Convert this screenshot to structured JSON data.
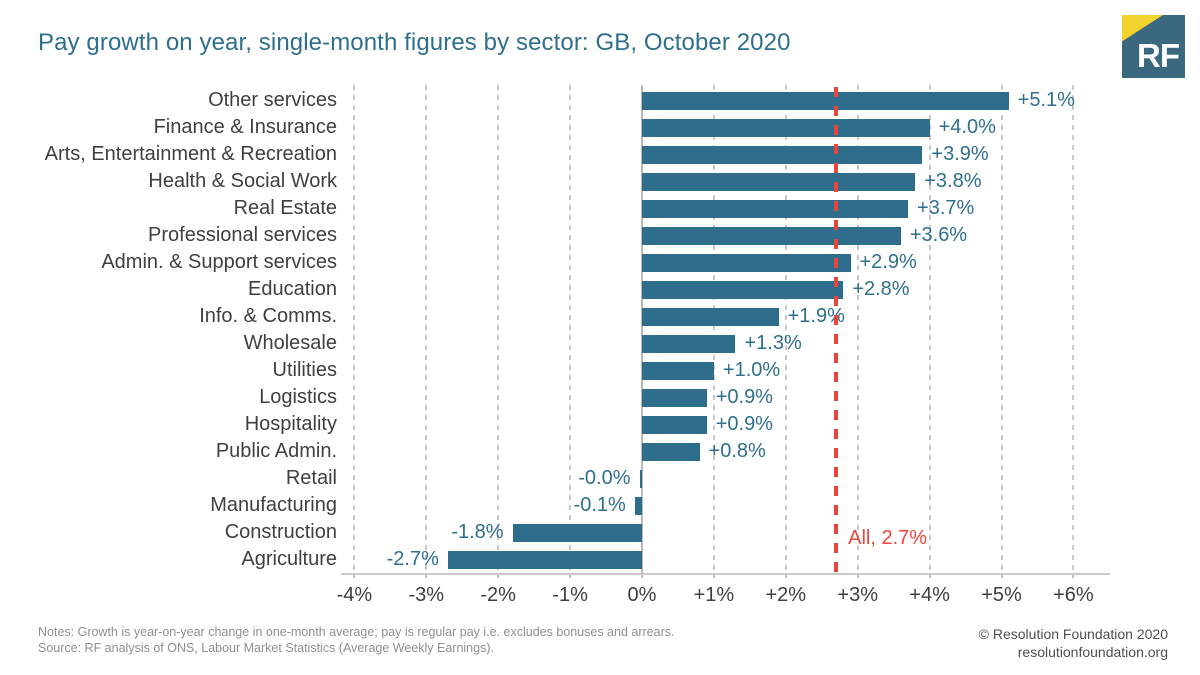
{
  "header": {
    "title": "Pay growth on year, single-month figures by sector: GB, October 2020",
    "logo_text": "RF",
    "logo_colors": {
      "background": "#3A687F",
      "corner": "#F2D32E",
      "text": "#FFFFFF"
    }
  },
  "chart_data": {
    "type": "bar",
    "orientation": "horizontal",
    "title": "Pay growth on year, single-month figures by sector: GB, October 2020",
    "categories": [
      "Other services",
      "Finance & Insurance",
      "Arts, Entertainment & Recreation",
      "Health & Social Work",
      "Real Estate",
      "Professional services",
      "Admin. & Support services",
      "Education",
      "Info. & Comms.",
      "Wholesale",
      "Utilities",
      "Logistics",
      "Hospitality",
      "Public Admin.",
      "Retail",
      "Manufacturing",
      "Construction",
      "Agriculture"
    ],
    "values": [
      5.1,
      4.0,
      3.9,
      3.8,
      3.7,
      3.6,
      2.9,
      2.8,
      1.9,
      1.3,
      1.0,
      0.9,
      0.9,
      0.8,
      -0.0,
      -0.1,
      -1.8,
      -2.7
    ],
    "value_labels": [
      "+5.1%",
      "+4.0%",
      "+3.9%",
      "+3.8%",
      "+3.7%",
      "+3.6%",
      "+2.9%",
      "+2.8%",
      "+1.9%",
      "+1.3%",
      "+1.0%",
      "+0.9%",
      "+0.9%",
      "+0.8%",
      "-0.0%",
      "-0.1%",
      "-1.8%",
      "-2.7%"
    ],
    "xlim": [
      -4,
      6
    ],
    "xticks": {
      "values": [
        -4,
        -3,
        -2,
        -1,
        0,
        1,
        2,
        3,
        4,
        5,
        6
      ],
      "labels": [
        "-4%",
        "-3%",
        "-2%",
        "-1%",
        "0%",
        "+1%",
        "+2%",
        "+3%",
        "+4%",
        "+5%",
        "+6%"
      ]
    },
    "grid": "vertical-dashed",
    "legend": "none",
    "bar_color": "#2E6E8C",
    "reference_line": {
      "value": 2.7,
      "label": "All, 2.7%",
      "color": "#E8463C",
      "style": "dashed"
    }
  },
  "footer": {
    "notes": "Notes: Growth is year-on-year change in one-month average; pay is regular pay i.e. excludes bonuses and arrears.",
    "source": "Source: RF analysis of ONS, Labour Market Statistics (Average Weekly Earnings).",
    "copyright": "© Resolution Foundation 2020",
    "website": "resolutionfoundation.org"
  }
}
